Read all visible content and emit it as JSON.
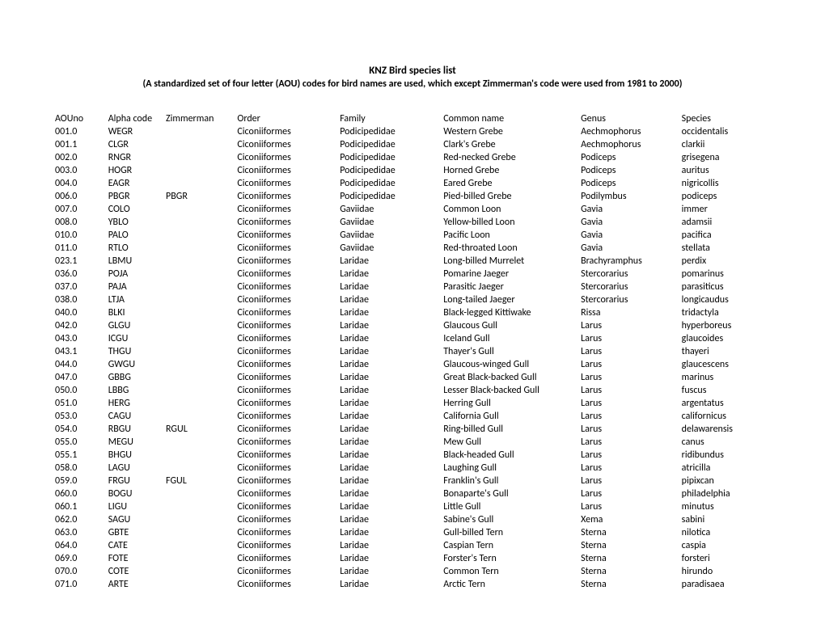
{
  "title": "KNZ Bird species list",
  "subtitle": "(A standardized set of four letter (AOU) codes for bird names are used, which except Zimmerman's code were used from 1981 to 2000)",
  "columns": [
    "AOUno",
    "Alpha code",
    "Zimmerman",
    "Order",
    "Family",
    "Common name",
    "Genus",
    "Species"
  ],
  "rows": [
    [
      "001.0",
      "WEGR",
      "",
      "Ciconiiformes",
      "Podicipedidae",
      "Western Grebe",
      "Aechmophorus",
      "occidentalis"
    ],
    [
      "001.1",
      "CLGR",
      "",
      "Ciconiiformes",
      "Podicipedidae",
      "Clark's Grebe",
      "Aechmophorus",
      "clarkii"
    ],
    [
      "002.0",
      "RNGR",
      "",
      "Ciconiiformes",
      "Podicipedidae",
      "Red-necked Grebe",
      "Podiceps",
      "grisegena"
    ],
    [
      "003.0",
      "HOGR",
      "",
      "Ciconiiformes",
      "Podicipedidae",
      "Horned Grebe",
      "Podiceps",
      "auritus"
    ],
    [
      "004.0",
      "EAGR",
      "",
      "Ciconiiformes",
      "Podicipedidae",
      "Eared Grebe",
      "Podiceps",
      "nigricollis"
    ],
    [
      "006.0",
      "PBGR",
      "PBGR",
      "Ciconiiformes",
      "Podicipedidae",
      "Pied-billed Grebe",
      "Podilymbus",
      "podiceps"
    ],
    [
      "007.0",
      "COLO",
      "",
      "Ciconiiformes",
      "Gaviidae",
      "Common Loon",
      "Gavia",
      "immer"
    ],
    [
      "008.0",
      "YBLO",
      "",
      "Ciconiiformes",
      "Gaviidae",
      "Yellow-billed Loon",
      "Gavia",
      "adamsii"
    ],
    [
      "010.0",
      "PALO",
      "",
      "Ciconiiformes",
      "Gaviidae",
      "Pacific Loon",
      "Gavia",
      "pacifica"
    ],
    [
      "011.0",
      "RTLO",
      "",
      "Ciconiiformes",
      "Gaviidae",
      "Red-throated Loon",
      "Gavia",
      "stellata"
    ],
    [
      "023.1",
      "LBMU",
      "",
      "Ciconiiformes",
      "Laridae",
      "Long-billed Murrelet",
      "Brachyramphus",
      "perdix"
    ],
    [
      "036.0",
      "POJA",
      "",
      "Ciconiiformes",
      "Laridae",
      "Pomarine Jaeger",
      "Stercorarius",
      "pomarinus"
    ],
    [
      "037.0",
      "PAJA",
      "",
      "Ciconiiformes",
      "Laridae",
      "Parasitic Jaeger",
      "Stercorarius",
      "parasiticus"
    ],
    [
      "038.0",
      "LTJA",
      "",
      "Ciconiiformes",
      "Laridae",
      "Long-tailed Jaeger",
      "Stercorarius",
      "longicaudus"
    ],
    [
      "040.0",
      "BLKI",
      "",
      "Ciconiiformes",
      "Laridae",
      "Black-legged Kittiwake",
      "Rissa",
      "tridactyla"
    ],
    [
      "042.0",
      "GLGU",
      "",
      "Ciconiiformes",
      "Laridae",
      "Glaucous Gull",
      "Larus",
      "hyperboreus"
    ],
    [
      "043.0",
      "ICGU",
      "",
      "Ciconiiformes",
      "Laridae",
      "Iceland Gull",
      "Larus",
      "glaucoides"
    ],
    [
      "043.1",
      "THGU",
      "",
      "Ciconiiformes",
      "Laridae",
      "Thayer's Gull",
      "Larus",
      "thayeri"
    ],
    [
      "044.0",
      "GWGU",
      "",
      "Ciconiiformes",
      "Laridae",
      "Glaucous-winged Gull",
      "Larus",
      "glaucescens"
    ],
    [
      "047.0",
      "GBBG",
      "",
      "Ciconiiformes",
      "Laridae",
      "Great Black-backed Gull",
      "Larus",
      "marinus"
    ],
    [
      "050.0",
      "LBBG",
      "",
      "Ciconiiformes",
      "Laridae",
      "Lesser Black-backed Gull",
      "Larus",
      "fuscus"
    ],
    [
      "051.0",
      "HERG",
      "",
      "Ciconiiformes",
      "Laridae",
      "Herring Gull",
      "Larus",
      "argentatus"
    ],
    [
      "053.0",
      "CAGU",
      "",
      "Ciconiiformes",
      "Laridae",
      "California Gull",
      "Larus",
      "californicus"
    ],
    [
      "054.0",
      "RBGU",
      "RGUL",
      "Ciconiiformes",
      "Laridae",
      "Ring-billed Gull",
      "Larus",
      "delawarensis"
    ],
    [
      "055.0",
      "MEGU",
      "",
      "Ciconiiformes",
      "Laridae",
      "Mew Gull",
      "Larus",
      "canus"
    ],
    [
      "055.1",
      "BHGU",
      "",
      "Ciconiiformes",
      "Laridae",
      "Black-headed Gull",
      "Larus",
      "ridibundus"
    ],
    [
      "058.0",
      "LAGU",
      "",
      "Ciconiiformes",
      "Laridae",
      "Laughing Gull",
      "Larus",
      "atricilla"
    ],
    [
      "059.0",
      "FRGU",
      "FGUL",
      "Ciconiiformes",
      "Laridae",
      "Franklin's Gull",
      "Larus",
      "pipixcan"
    ],
    [
      "060.0",
      "BOGU",
      "",
      "Ciconiiformes",
      "Laridae",
      "Bonaparte's Gull",
      "Larus",
      "philadelphia"
    ],
    [
      "060.1",
      "LIGU",
      "",
      "Ciconiiformes",
      "Laridae",
      "Little Gull",
      "Larus",
      "minutus"
    ],
    [
      "062.0",
      "SAGU",
      "",
      "Ciconiiformes",
      "Laridae",
      "Sabine's Gull",
      "Xema",
      "sabini"
    ],
    [
      "063.0",
      "GBTE",
      "",
      "Ciconiiformes",
      "Laridae",
      "Gull-billed Tern",
      "Sterna",
      "nilotica"
    ],
    [
      "064.0",
      "CATE",
      "",
      "Ciconiiformes",
      "Laridae",
      "Caspian Tern",
      "Sterna",
      "caspia"
    ],
    [
      "069.0",
      "FOTE",
      "",
      "Ciconiiformes",
      "Laridae",
      "Forster's Tern",
      "Sterna",
      "forsteri"
    ],
    [
      "070.0",
      "COTE",
      "",
      "Ciconiiformes",
      "Laridae",
      "Common Tern",
      "Sterna",
      "hirundo"
    ],
    [
      "071.0",
      "ARTE",
      "",
      "Ciconiiformes",
      "Laridae",
      "Arctic Tern",
      "Sterna",
      "paradisaea"
    ]
  ]
}
